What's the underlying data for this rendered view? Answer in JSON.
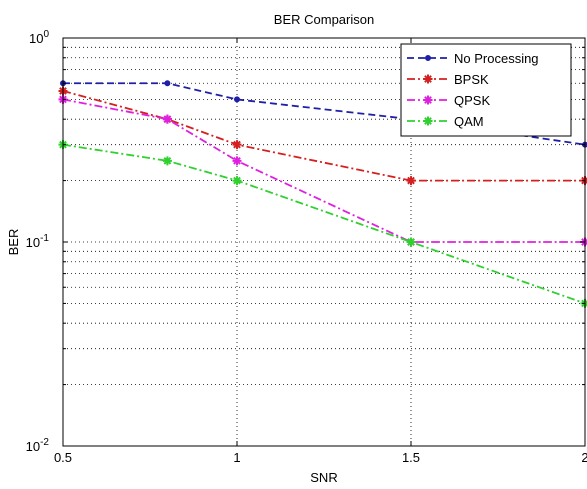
{
  "chart_data": {
    "type": "line",
    "title": "BER Comparison",
    "xlabel": "SNR",
    "ylabel": "BER",
    "x_scale": "linear",
    "y_scale": "log",
    "xlim": [
      0.5,
      2
    ],
    "ylim": [
      0.01,
      1
    ],
    "x_ticks": [
      0.5,
      1,
      1.5,
      2
    ],
    "x_tick_labels": [
      "0.5",
      "1",
      "1.5",
      "2"
    ],
    "y_ticks": [
      0.01,
      0.1,
      1
    ],
    "y_tick_labels": [
      {
        "base": "10",
        "exp": "-2"
      },
      {
        "base": "10",
        "exp": "-1"
      },
      {
        "base": "10",
        "exp": "0"
      }
    ],
    "grid": true,
    "legend_position": "top-right",
    "series": [
      {
        "name": "No Processing",
        "color": "#1f1fa8",
        "style": "dashed",
        "marker": "dot",
        "x": [
          0.5,
          0.8,
          1,
          1.5,
          2
        ],
        "y": [
          0.6,
          0.6,
          0.5,
          0.4,
          0.3
        ]
      },
      {
        "name": "BPSK",
        "color": "#d42020",
        "style": "dashdot",
        "marker": "star",
        "x": [
          0.5,
          0.8,
          1,
          1.5,
          2
        ],
        "y": [
          0.55,
          0.4,
          0.3,
          0.2,
          0.2
        ]
      },
      {
        "name": "QPSK",
        "color": "#e020e0",
        "style": "dashdot",
        "marker": "star",
        "x": [
          0.5,
          0.8,
          1,
          1.5,
          2
        ],
        "y": [
          0.5,
          0.4,
          0.25,
          0.1,
          0.1
        ]
      },
      {
        "name": "QAM",
        "color": "#30d030",
        "style": "dashdot",
        "marker": "star",
        "x": [
          0.5,
          0.8,
          1,
          1.5,
          2
        ],
        "y": [
          0.3,
          0.25,
          0.2,
          0.1,
          0.05
        ]
      }
    ]
  }
}
